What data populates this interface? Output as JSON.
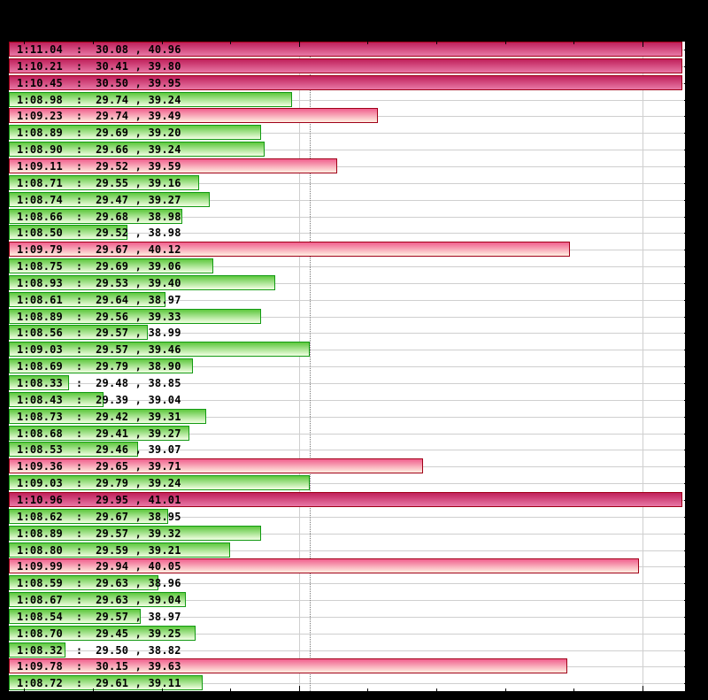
{
  "chart_data": {
    "type": "bar",
    "orientation": "horizontal",
    "title": "",
    "xlabel": "",
    "ylabel": "",
    "x_unit": "lap time (seconds)",
    "xlim": [
      68.155,
      70.12
    ],
    "major_gridlines": [
      "1:09.00",
      "1:10.00"
    ],
    "minor_tick_interval": 0.2,
    "reference_line": {
      "style": "dotted",
      "value": 69.03
    },
    "grid": true,
    "legend": null,
    "colors": {
      "faster": "#5ec83e",
      "slower": "#f0608e",
      "offscale": "#c0205a"
    },
    "rows": [
      {
        "label": "1:11.04  :  30.08 , 40.96",
        "lap": 71.04,
        "s1": 30.08,
        "s2": 40.96,
        "color": "hot"
      },
      {
        "label": "1:10.21  :  30.41 , 39.80",
        "lap": 70.21,
        "s1": 30.41,
        "s2": 39.8,
        "color": "hot"
      },
      {
        "label": "1:10.45  :  30.50 , 39.95",
        "lap": 70.45,
        "s1": 30.5,
        "s2": 39.95,
        "color": "hot"
      },
      {
        "label": "1:08.98  :  29.74 , 39.24",
        "lap": 68.98,
        "s1": 29.74,
        "s2": 39.24,
        "color": "green"
      },
      {
        "label": "1:09.23  :  29.74 , 39.49",
        "lap": 69.23,
        "s1": 29.74,
        "s2": 39.49,
        "color": "red"
      },
      {
        "label": "1:08.89  :  29.69 , 39.20",
        "lap": 68.89,
        "s1": 29.69,
        "s2": 39.2,
        "color": "green"
      },
      {
        "label": "1:08.90  :  29.66 , 39.24",
        "lap": 68.9,
        "s1": 29.66,
        "s2": 39.24,
        "color": "green"
      },
      {
        "label": "1:09.11  :  29.52 , 39.59",
        "lap": 69.11,
        "s1": 29.52,
        "s2": 39.59,
        "color": "red"
      },
      {
        "label": "1:08.71  :  29.55 , 39.16",
        "lap": 68.71,
        "s1": 29.55,
        "s2": 39.16,
        "color": "green"
      },
      {
        "label": "1:08.74  :  29.47 , 39.27",
        "lap": 68.74,
        "s1": 29.47,
        "s2": 39.27,
        "color": "green"
      },
      {
        "label": "1:08.66  :  29.68 , 38.98",
        "lap": 68.66,
        "s1": 29.68,
        "s2": 38.98,
        "color": "green"
      },
      {
        "label": "1:08.50  :  29.52 , 38.98",
        "lap": 68.5,
        "s1": 29.52,
        "s2": 38.98,
        "color": "green"
      },
      {
        "label": "1:09.79  :  29.67 , 40.12",
        "lap": 69.79,
        "s1": 29.67,
        "s2": 40.12,
        "color": "red"
      },
      {
        "label": "1:08.75  :  29.69 , 39.06",
        "lap": 68.75,
        "s1": 29.69,
        "s2": 39.06,
        "color": "green"
      },
      {
        "label": "1:08.93  :  29.53 , 39.40",
        "lap": 68.93,
        "s1": 29.53,
        "s2": 39.4,
        "color": "green"
      },
      {
        "label": "1:08.61  :  29.64 , 38.97",
        "lap": 68.61,
        "s1": 29.64,
        "s2": 38.97,
        "color": "green"
      },
      {
        "label": "1:08.89  :  29.56 , 39.33",
        "lap": 68.89,
        "s1": 29.56,
        "s2": 39.33,
        "color": "green"
      },
      {
        "label": "1:08.56  :  29.57 , 38.99",
        "lap": 68.56,
        "s1": 29.57,
        "s2": 38.99,
        "color": "green"
      },
      {
        "label": "1:09.03  :  29.57 , 39.46",
        "lap": 69.03,
        "s1": 29.57,
        "s2": 39.46,
        "color": "green"
      },
      {
        "label": "1:08.69  :  29.79 , 38.90",
        "lap": 68.69,
        "s1": 29.79,
        "s2": 38.9,
        "color": "green"
      },
      {
        "label": "1:08.33  :  29.48 , 38.85",
        "lap": 68.33,
        "s1": 29.48,
        "s2": 38.85,
        "color": "green"
      },
      {
        "label": "1:08.43  :  29.39 , 39.04",
        "lap": 68.43,
        "s1": 29.39,
        "s2": 39.04,
        "color": "green"
      },
      {
        "label": "1:08.73  :  29.42 , 39.31",
        "lap": 68.73,
        "s1": 29.42,
        "s2": 39.31,
        "color": "green"
      },
      {
        "label": "1:08.68  :  29.41 , 39.27",
        "lap": 68.68,
        "s1": 29.41,
        "s2": 39.27,
        "color": "green"
      },
      {
        "label": "1:08.53  :  29.46 , 39.07",
        "lap": 68.53,
        "s1": 29.46,
        "s2": 39.07,
        "color": "green"
      },
      {
        "label": "1:09.36  :  29.65 , 39.71",
        "lap": 69.36,
        "s1": 29.65,
        "s2": 39.71,
        "color": "red"
      },
      {
        "label": "1:09.03  :  29.79 , 39.24",
        "lap": 69.03,
        "s1": 29.79,
        "s2": 39.24,
        "color": "green"
      },
      {
        "label": "1:10.96  :  29.95 , 41.01",
        "lap": 70.96,
        "s1": 29.95,
        "s2": 41.01,
        "color": "hot"
      },
      {
        "label": "1:08.62  :  29.67 , 38.95",
        "lap": 68.62,
        "s1": 29.67,
        "s2": 38.95,
        "color": "green"
      },
      {
        "label": "1:08.89  :  29.57 , 39.32",
        "lap": 68.89,
        "s1": 29.57,
        "s2": 39.32,
        "color": "green"
      },
      {
        "label": "1:08.80  :  29.59 , 39.21",
        "lap": 68.8,
        "s1": 29.59,
        "s2": 39.21,
        "color": "green"
      },
      {
        "label": "1:09.99  :  29.94 , 40.05",
        "lap": 69.99,
        "s1": 29.94,
        "s2": 40.05,
        "color": "red"
      },
      {
        "label": "1:08.59  :  29.63 , 38.96",
        "lap": 68.59,
        "s1": 29.63,
        "s2": 38.96,
        "color": "green"
      },
      {
        "label": "1:08.67  :  29.63 , 39.04",
        "lap": 68.67,
        "s1": 29.63,
        "s2": 39.04,
        "color": "green"
      },
      {
        "label": "1:08.54  :  29.57 , 38.97",
        "lap": 68.54,
        "s1": 29.57,
        "s2": 38.97,
        "color": "green"
      },
      {
        "label": "1:08.70  :  29.45 , 39.25",
        "lap": 68.7,
        "s1": 29.45,
        "s2": 39.25,
        "color": "green"
      },
      {
        "label": "1:08.32  :  29.50 , 38.82",
        "lap": 68.32,
        "s1": 29.5,
        "s2": 38.82,
        "color": "green"
      },
      {
        "label": "1:09.78  :  30.15 , 39.63",
        "lap": 69.78,
        "s1": 30.15,
        "s2": 39.63,
        "color": "red"
      },
      {
        "label": "1:08.72  :  29.61 , 39.11",
        "lap": 68.72,
        "s1": 29.61,
        "s2": 39.11,
        "color": "green"
      }
    ]
  }
}
